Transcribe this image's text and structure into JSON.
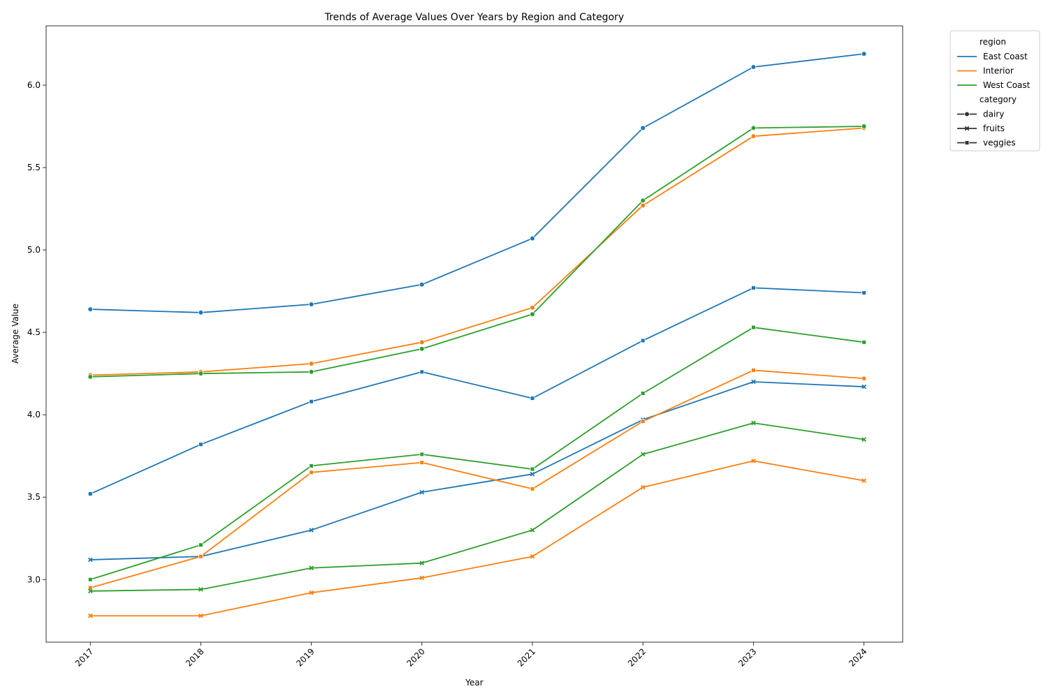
{
  "chart_data": {
    "type": "line",
    "title": "Trends of Average Values Over Years by Region and Category",
    "xlabel": "Year",
    "ylabel": "Average Value",
    "x": [
      2017,
      2018,
      2019,
      2020,
      2021,
      2022,
      2023,
      2024
    ],
    "x_tick_labels": [
      "2017",
      "2018",
      "2019",
      "2020",
      "2021",
      "2022",
      "2023",
      "2024"
    ],
    "y_ticks": [
      3.0,
      3.5,
      4.0,
      4.5,
      5.0,
      5.5,
      6.0
    ],
    "y_tick_labels": [
      "3.0",
      "3.5",
      "4.0",
      "4.5",
      "5.0",
      "5.5",
      "6.0"
    ],
    "xlim": [
      2016.6,
      2024.35
    ],
    "ylim": [
      2.62,
      6.36
    ],
    "grid": false,
    "legend_position": "outside-top-right",
    "legend": {
      "hue_title": "region",
      "style_title": "category",
      "regions": [
        {
          "name": "East Coast",
          "color": "#1f77b4"
        },
        {
          "name": "Interior",
          "color": "#ff7f0e"
        },
        {
          "name": "West Coast",
          "color": "#2ca02c"
        }
      ],
      "categories": [
        {
          "name": "dairy",
          "marker": "circle"
        },
        {
          "name": "fruits",
          "marker": "x"
        },
        {
          "name": "veggies",
          "marker": "square"
        }
      ]
    },
    "series": [
      {
        "region": "East Coast",
        "category": "dairy",
        "values": [
          4.64,
          4.62,
          4.67,
          4.79,
          5.07,
          5.74,
          6.11,
          6.19
        ]
      },
      {
        "region": "East Coast",
        "category": "fruits",
        "values": [
          3.12,
          3.14,
          3.3,
          3.53,
          3.64,
          3.97,
          4.2,
          4.17
        ]
      },
      {
        "region": "East Coast",
        "category": "veggies",
        "values": [
          3.52,
          3.82,
          4.08,
          4.26,
          4.1,
          4.45,
          4.77,
          4.74
        ]
      },
      {
        "region": "Interior",
        "category": "dairy",
        "values": [
          4.24,
          4.26,
          4.31,
          4.44,
          4.65,
          5.27,
          5.69,
          5.74
        ]
      },
      {
        "region": "Interior",
        "category": "fruits",
        "values": [
          2.78,
          2.78,
          2.92,
          3.01,
          3.14,
          3.56,
          3.72,
          3.6
        ]
      },
      {
        "region": "Interior",
        "category": "veggies",
        "values": [
          2.95,
          3.14,
          3.65,
          3.71,
          3.55,
          3.96,
          4.27,
          4.22
        ]
      },
      {
        "region": "West Coast",
        "category": "dairy",
        "values": [
          4.23,
          4.25,
          4.26,
          4.4,
          4.61,
          5.3,
          5.74,
          5.75
        ]
      },
      {
        "region": "West Coast",
        "category": "fruits",
        "values": [
          2.93,
          2.94,
          3.07,
          3.1,
          3.3,
          3.76,
          3.95,
          3.85
        ]
      },
      {
        "region": "West Coast",
        "category": "veggies",
        "values": [
          3.0,
          3.21,
          3.69,
          3.76,
          3.67,
          4.13,
          4.53,
          4.44
        ]
      }
    ]
  }
}
